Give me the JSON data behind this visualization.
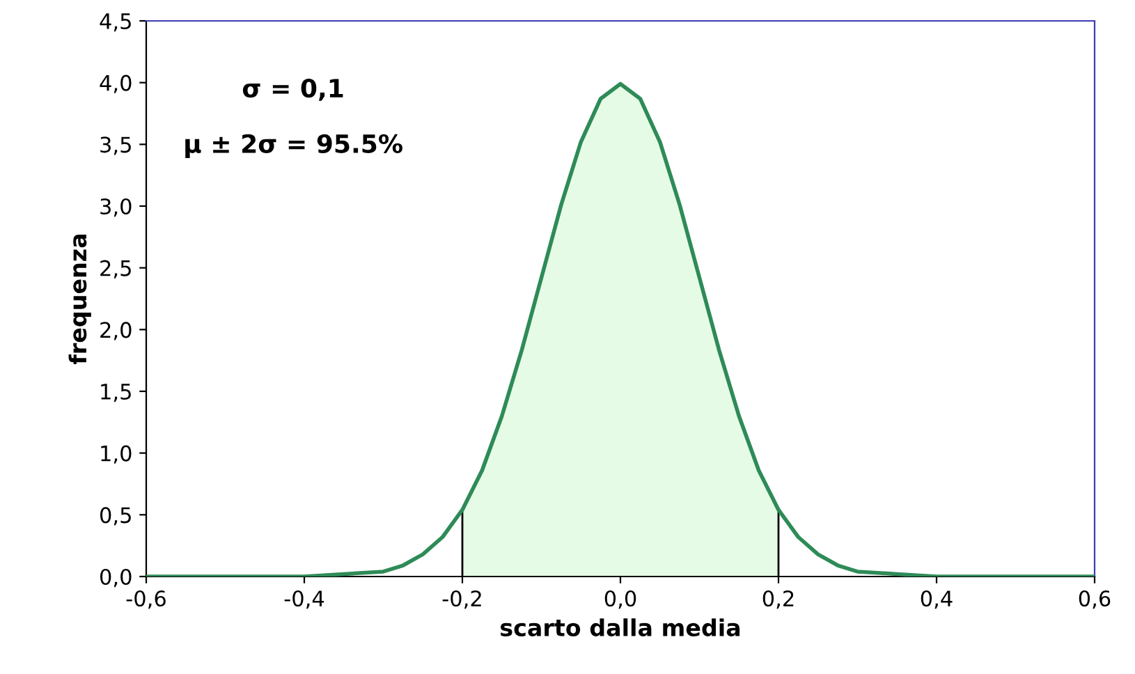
{
  "chart_data": {
    "type": "line",
    "xlabel": "scarto dalla media",
    "ylabel": "frequenza",
    "annotations": [
      "σ = 0,1",
      "μ ± 2σ = 95.5%"
    ],
    "series": [
      {
        "type": "area",
        "color": "#e6fbe6",
        "x": [
          -0.2,
          -0.175,
          -0.15,
          -0.125,
          -0.1,
          -0.075,
          -0.05,
          -0.025,
          0,
          0.025,
          0.05,
          0.075,
          0.1,
          0.125,
          0.15,
          0.175,
          0.2
        ],
        "values": [
          0.54,
          0.86,
          1.3,
          1.83,
          2.42,
          3.01,
          3.52,
          3.87,
          3.99,
          3.87,
          3.52,
          3.01,
          2.42,
          1.83,
          1.3,
          0.86,
          0.54
        ]
      },
      {
        "type": "line",
        "color": "#000000",
        "x": [
          -0.2,
          -0.2
        ],
        "values": [
          0,
          0.54
        ]
      },
      {
        "type": "line",
        "color": "#000000",
        "x": [
          0.2,
          0.2
        ],
        "values": [
          0,
          0.54
        ]
      },
      {
        "color": "#2e8b57",
        "x": [
          -0.6,
          -0.5,
          -0.4,
          -0.35,
          -0.3,
          -0.275,
          -0.25,
          -0.225,
          -0.2,
          -0.175,
          -0.15,
          -0.125,
          -0.1,
          -0.075,
          -0.05,
          -0.025,
          0,
          0.025,
          0.05,
          0.075,
          0.1,
          0.125,
          0.15,
          0.175,
          0.2,
          0.225,
          0.25,
          0.275,
          0.3,
          0.35,
          0.4,
          0.5,
          0.6
        ],
        "values": [
          0,
          0,
          0,
          0.02,
          0.04,
          0.09,
          0.18,
          0.32,
          0.54,
          0.86,
          1.3,
          1.83,
          2.42,
          3.01,
          3.52,
          3.87,
          3.99,
          3.87,
          3.52,
          3.01,
          2.42,
          1.83,
          1.3,
          0.86,
          0.54,
          0.32,
          0.18,
          0.09,
          0.04,
          0.02,
          0,
          0,
          0
        ]
      }
    ],
    "xlim": [
      -0.6,
      0.6
    ],
    "xticks": [
      {
        "value": -0.6,
        "label": "-0,6"
      },
      {
        "value": -0.4,
        "label": "-0,4"
      },
      {
        "value": -0.2,
        "label": "-0,2"
      },
      {
        "value": 0,
        "label": "0,0"
      },
      {
        "value": 0.2,
        "label": "0,2"
      },
      {
        "value": 0.4,
        "label": "0,4"
      },
      {
        "value": 0.6,
        "label": "0,6"
      }
    ],
    "ylim": [
      0,
      4.5
    ],
    "yticks": [
      {
        "value": 0,
        "label": "0,0"
      },
      {
        "value": 0.5,
        "label": "0,5"
      },
      {
        "value": 1,
        "label": "1,0"
      },
      {
        "value": 1.5,
        "label": "1,5"
      },
      {
        "value": 2,
        "label": "2,0"
      },
      {
        "value": 2.5,
        "label": "2,5"
      },
      {
        "value": 3,
        "label": "3,0"
      },
      {
        "value": 3.5,
        "label": "3,5"
      },
      {
        "value": 4,
        "label": "4,0"
      },
      {
        "value": 4.5,
        "label": "4,5"
      }
    ],
    "grid": false,
    "legend": false
  }
}
